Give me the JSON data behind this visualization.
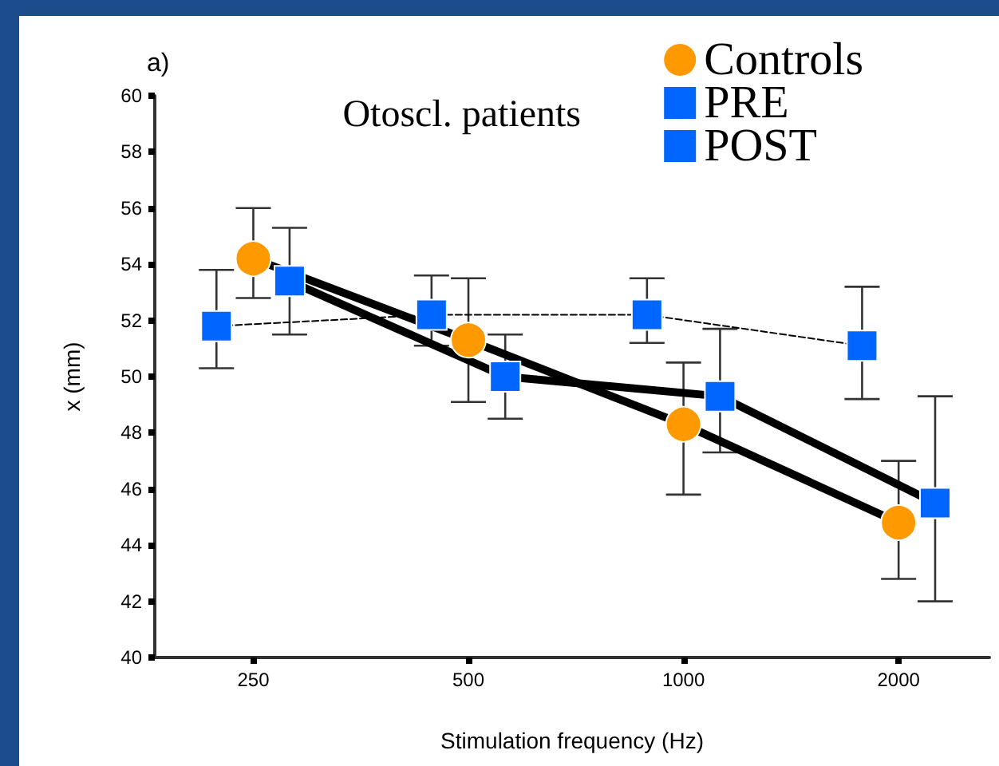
{
  "chart_data": {
    "type": "line",
    "xlabel": "Stimulation frequency (Hz)",
    "ylabel": "x (mm)",
    "legend_title": "Otoscl. patients",
    "annotations": [
      "a)"
    ],
    "x": [
      250,
      500,
      1000,
      2000
    ],
    "log": "x",
    "xlim": [
      182,
      2680
    ],
    "xticks": [
      250,
      500,
      1000,
      2000
    ],
    "ylim": [
      40,
      60
    ],
    "yticks": [
      40,
      42,
      44,
      46,
      48,
      50,
      52,
      54,
      56,
      58,
      60
    ],
    "grid": false,
    "legend": "top right",
    "series": [
      {
        "name": "Controls",
        "color": "#ff9900",
        "marker": "circle",
        "line_style": "solid",
        "values": [
          54.2,
          51.3,
          48.3,
          44.8
        ],
        "errors": [
          [
            52.8,
            56.0
          ],
          [
            49.1,
            53.5
          ],
          [
            45.8,
            50.5
          ],
          [
            42.8,
            47.0
          ]
        ]
      },
      {
        "name": "PRE",
        "color": "#0066ff",
        "marker": "square",
        "line_style": "dashed",
        "x": [
          222,
          444,
          889,
          1778
        ],
        "values": [
          51.8,
          52.2,
          52.2,
          51.1
        ],
        "errors": [
          [
            50.3,
            53.8
          ],
          [
            51.1,
            53.6
          ],
          [
            51.2,
            53.5
          ],
          [
            49.2,
            53.2
          ]
        ]
      },
      {
        "name": "POST",
        "color": "#0066ff",
        "marker": "square",
        "line_style": "solid",
        "x": [
          281,
          563,
          1125,
          2250
        ],
        "values": [
          53.4,
          50.0,
          49.3,
          45.5
        ],
        "errors": [
          [
            51.5,
            55.3
          ],
          [
            48.5,
            51.5
          ],
          [
            47.3,
            51.7
          ],
          [
            42.0,
            49.3
          ]
        ]
      }
    ]
  }
}
